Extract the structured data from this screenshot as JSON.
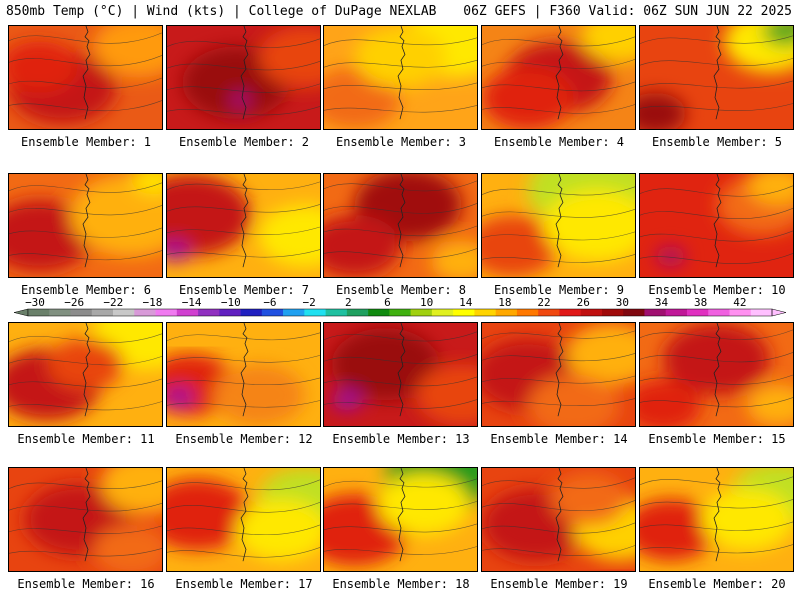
{
  "header": {
    "left": "850mb Temp (°C) | Wind (kts) | College of DuPage NEXLAB",
    "right": "06Z GEFS | F360 Valid: 06Z SUN JUN 22 2025"
  },
  "panels": [
    {
      "label": "Ensemble Member: 1",
      "base": "#ea5a16",
      "blobs": [
        [
          "#c41818",
          0.35,
          0.6,
          0.35
        ],
        [
          "#ff9a10",
          0.85,
          0.2,
          0.3
        ],
        [
          "#e02410",
          0.2,
          0.4,
          0.25
        ]
      ]
    },
    {
      "label": "Ensemble Member: 2",
      "base": "#c81a1a",
      "blobs": [
        [
          "#9a1010",
          0.45,
          0.55,
          0.35
        ],
        [
          "#e84410",
          0.9,
          0.3,
          0.3
        ],
        [
          "#b0118a",
          0.48,
          0.72,
          0.06
        ]
      ]
    },
    {
      "label": "Ensemble Member: 3",
      "base": "#ffa418",
      "blobs": [
        [
          "#ffe800",
          0.85,
          0.15,
          0.35
        ],
        [
          "#f26a14",
          0.2,
          0.7,
          0.3
        ],
        [
          "#ffd000",
          0.5,
          0.3,
          0.3
        ]
      ]
    },
    {
      "label": "Ensemble Member: 4",
      "base": "#f58416",
      "blobs": [
        [
          "#c41818",
          0.5,
          0.5,
          0.35
        ],
        [
          "#ffd000",
          0.9,
          0.1,
          0.25
        ],
        [
          "#e02410",
          0.3,
          0.7,
          0.3
        ]
      ]
    },
    {
      "label": "Ensemble Member: 5",
      "base": "#e84410",
      "blobs": [
        [
          "#ffe800",
          0.85,
          0.15,
          0.3
        ],
        [
          "#5aa81c",
          0.95,
          0.05,
          0.15
        ],
        [
          "#9a1010",
          0.1,
          0.85,
          0.2
        ]
      ]
    },
    {
      "label": "Ensemble Member: 6",
      "base": "#f26a14",
      "blobs": [
        [
          "#c41818",
          0.2,
          0.6,
          0.35
        ],
        [
          "#ffb010",
          0.8,
          0.4,
          0.4
        ],
        [
          "#ffe000",
          0.95,
          0.05,
          0.15
        ]
      ]
    },
    {
      "label": "Ensemble Member: 7",
      "base": "#ffb010",
      "blobs": [
        [
          "#c41818",
          0.15,
          0.4,
          0.4
        ],
        [
          "#ffe800",
          0.9,
          0.6,
          0.3
        ],
        [
          "#a0109a",
          0.05,
          0.75,
          0.1
        ]
      ]
    },
    {
      "label": "Ensemble Member: 8",
      "base": "#f26a14",
      "blobs": [
        [
          "#a01010",
          0.55,
          0.3,
          0.35
        ],
        [
          "#c41818",
          0.2,
          0.7,
          0.3
        ],
        [
          "#ffb010",
          0.9,
          0.85,
          0.2
        ]
      ]
    },
    {
      "label": "Ensemble Member: 9",
      "base": "#ffb010",
      "blobs": [
        [
          "#c0e020",
          0.7,
          0.15,
          0.4
        ],
        [
          "#e84410",
          0.2,
          0.7,
          0.3
        ],
        [
          "#ffe800",
          0.75,
          0.5,
          0.35
        ]
      ]
    },
    {
      "label": "Ensemble Member: 10",
      "base": "#e02410",
      "blobs": [
        [
          "#f26a14",
          0.8,
          0.3,
          0.3
        ],
        [
          "#ffb010",
          0.9,
          0.1,
          0.2
        ],
        [
          "#b01060",
          0.2,
          0.8,
          0.1
        ]
      ]
    },
    {
      "label": "Ensemble Member: 11",
      "base": "#ffb010",
      "blobs": [
        [
          "#c41818",
          0.25,
          0.6,
          0.35
        ],
        [
          "#ffe800",
          0.9,
          0.1,
          0.35
        ],
        [
          "#e84410",
          0.5,
          0.4,
          0.25
        ]
      ]
    },
    {
      "label": "Ensemble Member: 12",
      "base": "#ffb010",
      "blobs": [
        [
          "#e02410",
          0.15,
          0.6,
          0.3
        ],
        [
          "#a0109a",
          0.08,
          0.72,
          0.1
        ],
        [
          "#f58416",
          0.6,
          0.7,
          0.3
        ]
      ]
    },
    {
      "label": "Ensemble Member: 13",
      "base": "#c81a1a",
      "blobs": [
        [
          "#9a1010",
          0.4,
          0.4,
          0.35
        ],
        [
          "#e84410",
          0.9,
          0.7,
          0.3
        ],
        [
          "#a0109a",
          0.15,
          0.75,
          0.1
        ]
      ]
    },
    {
      "label": "Ensemble Member: 14",
      "base": "#e84410",
      "blobs": [
        [
          "#c41818",
          0.3,
          0.5,
          0.35
        ],
        [
          "#ffb010",
          0.85,
          0.3,
          0.3
        ],
        [
          "#f26a14",
          0.6,
          0.8,
          0.3
        ]
      ]
    },
    {
      "label": "Ensemble Member: 15",
      "base": "#f26a14",
      "blobs": [
        [
          "#c41818",
          0.5,
          0.35,
          0.35
        ],
        [
          "#e02410",
          0.15,
          0.8,
          0.25
        ],
        [
          "#ffb010",
          0.9,
          0.8,
          0.2
        ]
      ]
    },
    {
      "label": "Ensemble Member: 16",
      "base": "#e84410",
      "blobs": [
        [
          "#c41818",
          0.45,
          0.5,
          0.35
        ],
        [
          "#ffb010",
          0.9,
          0.15,
          0.3
        ],
        [
          "#f26a14",
          0.8,
          0.8,
          0.25
        ]
      ]
    },
    {
      "label": "Ensemble Member: 17",
      "base": "#ffb010",
      "blobs": [
        [
          "#e02410",
          0.2,
          0.45,
          0.35
        ],
        [
          "#c0e020",
          0.9,
          0.3,
          0.3
        ],
        [
          "#ffe800",
          0.75,
          0.6,
          0.3
        ]
      ]
    },
    {
      "label": "Ensemble Member: 18",
      "base": "#ffb010",
      "blobs": [
        [
          "#1e9a1e",
          0.75,
          0.1,
          0.35
        ],
        [
          "#e02410",
          0.2,
          0.6,
          0.35
        ],
        [
          "#ffe800",
          0.65,
          0.35,
          0.3
        ]
      ]
    },
    {
      "label": "Ensemble Member: 19",
      "base": "#e84410",
      "blobs": [
        [
          "#c41818",
          0.35,
          0.55,
          0.35
        ],
        [
          "#ffd000",
          0.9,
          0.6,
          0.3
        ],
        [
          "#f26a14",
          0.7,
          0.3,
          0.25
        ]
      ]
    },
    {
      "label": "Ensemble Member: 20",
      "base": "#ffb010",
      "blobs": [
        [
          "#c0e020",
          0.9,
          0.25,
          0.3
        ],
        [
          "#e02410",
          0.2,
          0.6,
          0.3
        ],
        [
          "#ffe800",
          0.7,
          0.5,
          0.3
        ]
      ]
    }
  ],
  "colorbar": {
    "tick_labels": [
      "−30",
      "−26",
      "−22",
      "−18",
      "−14",
      "−10",
      "−6",
      "−2",
      "2",
      "6",
      "10",
      "14",
      "18",
      "22",
      "26",
      "30",
      "34",
      "38",
      "42"
    ],
    "colors": [
      "#6a806a",
      "#809080",
      "#8c8c8c",
      "#a8a8a8",
      "#c8c8c8",
      "#d89ad8",
      "#f07af0",
      "#d040d0",
      "#9030c0",
      "#6020c0",
      "#2020c0",
      "#2050e0",
      "#20a0f0",
      "#20e0f0",
      "#20c0a0",
      "#20a060",
      "#108a10",
      "#40b010",
      "#a0d010",
      "#e0f020",
      "#ffff00",
      "#ffd400",
      "#ffa800",
      "#ff7800",
      "#f04810",
      "#e01818",
      "#c01010",
      "#a00a0a",
      "#800810",
      "#a01070",
      "#c01898",
      "#e030c0",
      "#f060e0",
      "#ff90f0",
      "#ffc0ff"
    ]
  }
}
